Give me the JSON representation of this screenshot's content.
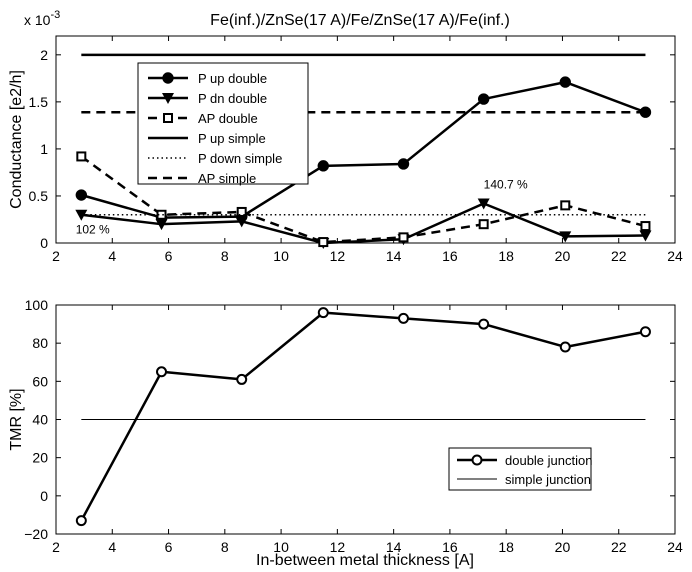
{
  "chart_data": [
    {
      "type": "line",
      "title": "Fe(inf.)/ZnSe(17 A)/Fe/ZnSe(17 A)/Fe(inf.)",
      "xlabel": "",
      "ylabel": "Conductance [e2/h]",
      "y_multiplier": "x 10",
      "y_multiplier_exp": "-3",
      "xlim": [
        2,
        24
      ],
      "ylim": [
        0,
        2.2
      ],
      "xticks": [
        2,
        4,
        6,
        8,
        10,
        12,
        14,
        16,
        18,
        20,
        22,
        24
      ],
      "yticks": [
        0,
        0.5,
        1,
        1.5,
        2
      ],
      "ytick_labels": [
        "0",
        "0.5",
        "1",
        "1.5",
        "2"
      ],
      "grid": false,
      "legend_position": "top-left",
      "series": [
        {
          "name": "P up double",
          "style": "solid",
          "marker": "circle",
          "x": [
            2.9,
            5.75,
            8.6,
            11.5,
            14.35,
            17.2,
            20.1,
            22.95
          ],
          "y": [
            0.51,
            0.27,
            0.28,
            0.82,
            0.84,
            1.53,
            1.71,
            1.39
          ]
        },
        {
          "name": "P dn double",
          "style": "solid",
          "marker": "triangle-down",
          "x": [
            2.9,
            5.75,
            8.6,
            11.5,
            14.35,
            17.2,
            20.1,
            22.95
          ],
          "y": [
            0.3,
            0.2,
            0.23,
            0.0,
            0.04,
            0.42,
            0.07,
            0.08
          ]
        },
        {
          "name": "AP double",
          "style": "dashed",
          "marker": "square",
          "x": [
            2.9,
            5.75,
            8.6,
            11.5,
            14.35,
            17.2,
            20.1,
            22.95
          ],
          "y": [
            0.92,
            0.3,
            0.33,
            0.01,
            0.06,
            0.2,
            0.4,
            0.18
          ]
        },
        {
          "name": "P up simple",
          "style": "solid",
          "marker": "none",
          "x": [
            2.9,
            22.95
          ],
          "y": [
            2.0,
            2.0
          ]
        },
        {
          "name": "P down simple",
          "style": "dotted",
          "marker": "none",
          "x": [
            2.9,
            22.95
          ],
          "y": [
            0.3,
            0.3
          ]
        },
        {
          "name": "AP simple",
          "style": "dashed",
          "marker": "none",
          "x": [
            2.9,
            22.95
          ],
          "y": [
            1.39,
            1.39
          ]
        }
      ],
      "annotations": [
        {
          "text": "102 %",
          "x": 2.7,
          "y": 0.1
        },
        {
          "text": "140.7 %",
          "x": 17.2,
          "y": 0.58
        }
      ]
    },
    {
      "type": "line",
      "title": "",
      "xlabel": "In-between metal thickness [A]",
      "ylabel": "TMR [%]",
      "xlim": [
        2,
        24
      ],
      "ylim": [
        -20,
        100
      ],
      "xticks": [
        2,
        4,
        6,
        8,
        10,
        12,
        14,
        16,
        18,
        20,
        22,
        24
      ],
      "yticks": [
        -20,
        0,
        20,
        40,
        60,
        80,
        100
      ],
      "ytick_labels": [
        "−20",
        "0",
        "20",
        "40",
        "60",
        "80",
        "100"
      ],
      "grid": false,
      "legend_position": "bottom-right",
      "series": [
        {
          "name": "double junction",
          "style": "solid",
          "marker": "circle-open",
          "x": [
            2.9,
            5.75,
            8.6,
            11.5,
            14.35,
            17.2,
            20.1,
            22.95
          ],
          "y": [
            -13,
            65,
            61,
            96,
            93,
            90,
            78,
            86
          ]
        },
        {
          "name": "simple junction",
          "style": "thin",
          "marker": "none",
          "x": [
            2.9,
            22.95
          ],
          "y": [
            40,
            40
          ]
        }
      ]
    }
  ]
}
